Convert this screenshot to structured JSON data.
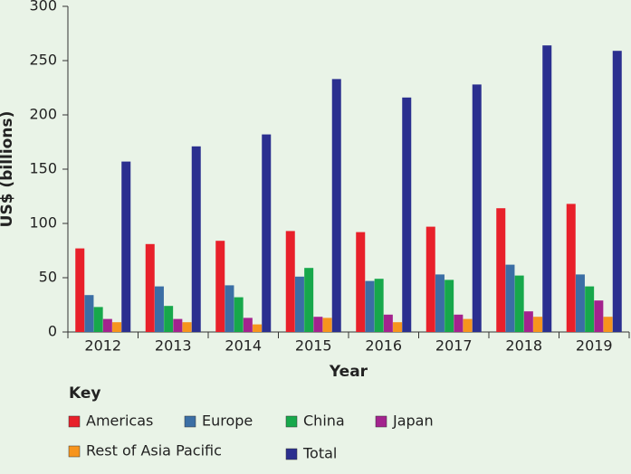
{
  "chart_data": {
    "type": "bar",
    "x_label": "Year",
    "y_label": "US$ (billions)",
    "legend_title": "Key",
    "categories": [
      "2012",
      "2013",
      "2014",
      "2015",
      "2016",
      "2017",
      "2018",
      "2019"
    ],
    "series": [
      {
        "name": "Americas",
        "color": "#e8202a",
        "values": [
          77,
          81,
          84,
          93,
          92,
          97,
          114,
          118
        ]
      },
      {
        "name": "Europe",
        "color": "#3b6ea5",
        "values": [
          34,
          42,
          43,
          51,
          47,
          53,
          62,
          53
        ]
      },
      {
        "name": "China",
        "color": "#17a84b",
        "values": [
          23,
          24,
          32,
          59,
          49,
          48,
          52,
          42
        ]
      },
      {
        "name": "Japan",
        "color": "#a3238e",
        "values": [
          12,
          12,
          13,
          14,
          16,
          16,
          19,
          29
        ]
      },
      {
        "name": "Rest of Asia Pacific",
        "color": "#f7941d",
        "values": [
          9,
          9,
          7,
          13,
          9,
          12,
          14,
          14
        ]
      },
      {
        "name": "Total",
        "color": "#2b2f8f",
        "values": [
          157,
          171,
          182,
          233,
          216,
          228,
          264,
          259
        ]
      }
    ],
    "ylim": [
      0,
      300
    ],
    "yticks": [
      0,
      50,
      100,
      150,
      200,
      250,
      300
    ],
    "grid": false
  }
}
